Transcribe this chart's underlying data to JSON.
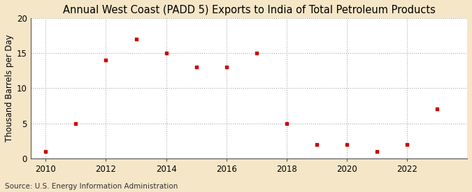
{
  "title": "Annual West Coast (PADD 5) Exports to India of Total Petroleum Products",
  "ylabel": "Thousand Barrels per Day",
  "source": "Source: U.S. Energy Information Administration",
  "fig_background_color": "#f5e6c8",
  "plot_background_color": "#ffffff",
  "marker_color": "#cc0000",
  "years": [
    2010,
    2011,
    2012,
    2013,
    2014,
    2015,
    2016,
    2017,
    2018,
    2019,
    2020,
    2021,
    2022,
    2023
  ],
  "values": [
    1,
    5,
    14,
    17,
    15,
    13,
    13,
    15,
    5,
    2,
    2,
    1,
    2,
    7
  ],
  "xlim": [
    2009.5,
    2024.0
  ],
  "ylim": [
    0,
    20
  ],
  "yticks": [
    0,
    5,
    10,
    15,
    20
  ],
  "xticks": [
    2010,
    2012,
    2014,
    2016,
    2018,
    2020,
    2022
  ],
  "grid_color": "#aaaaaa",
  "title_fontsize": 10.5,
  "label_fontsize": 8.5,
  "tick_fontsize": 8.5,
  "source_fontsize": 7.5
}
